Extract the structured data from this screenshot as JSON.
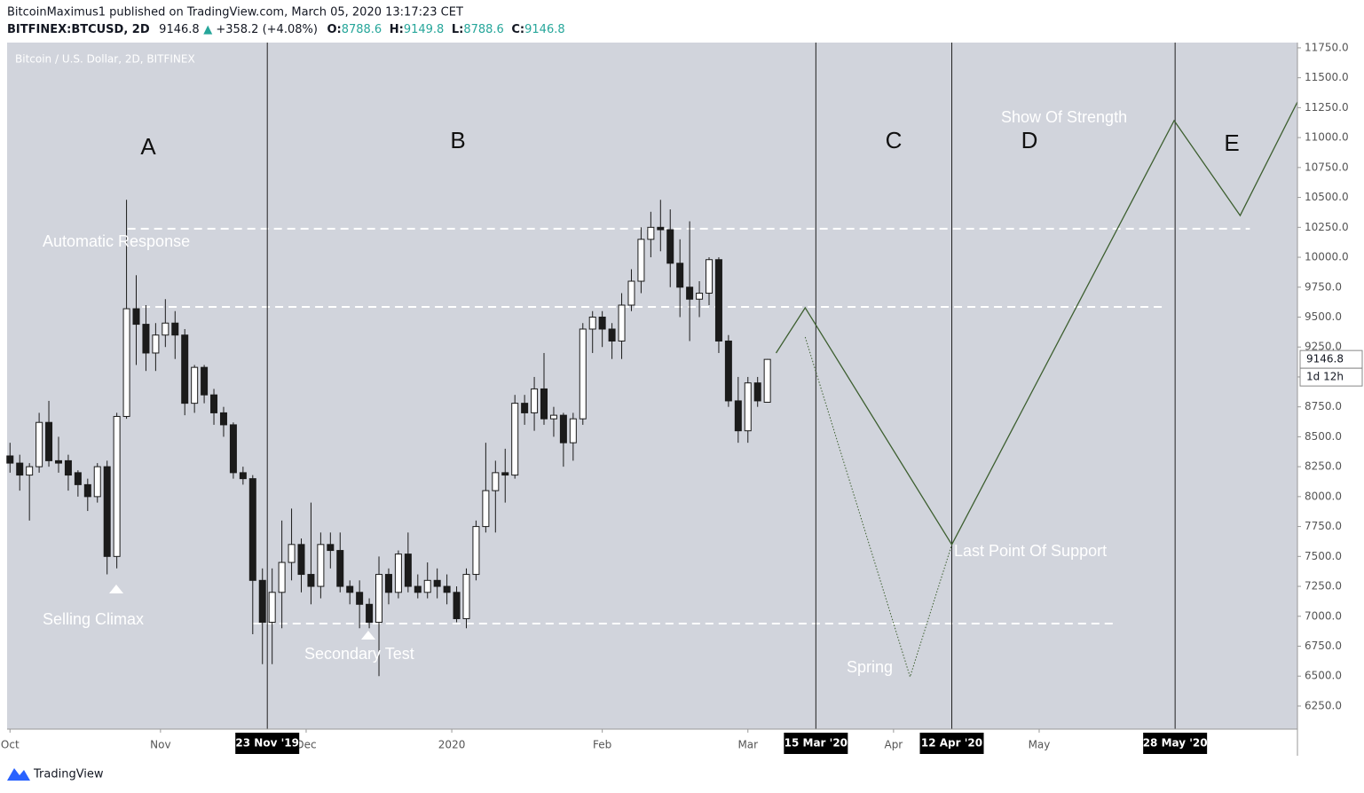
{
  "header": {
    "byline": "BitcoinMaximus1 published on TradingView.com, March 05, 2020 13:17:23 CET",
    "symbol": "BITFINEX:BTCUSD, 2D",
    "last": "9146.8",
    "change": "+358.2 (+4.08%)",
    "ohlc": [
      {
        "label": "O:",
        "value": "8788.6"
      },
      {
        "label": "H:",
        "value": "9149.8"
      },
      {
        "label": "L:",
        "value": "8788.6"
      },
      {
        "label": "C:",
        "value": "9146.8"
      }
    ]
  },
  "footer": {
    "brand": "TradingView"
  },
  "chart_data": {
    "type": "candlestick",
    "title": "Bitcoin / U.S. Dollar, 2D, BITFINEX",
    "up_color": "#ffffff",
    "down_color": "#1b1b1b",
    "open": [
      8340,
      8280,
      8180,
      8250,
      8620,
      8300,
      8300,
      8200,
      8100,
      8000,
      8250,
      7500,
      8670,
      9570,
      9440,
      9200,
      9350,
      9450,
      9350,
      8780,
      9080,
      8850,
      8700,
      8600,
      8200,
      8150,
      7300,
      6950,
      7200,
      7450,
      7600,
      7350,
      7250,
      7600,
      7550,
      7250,
      7200,
      7100,
      6950,
      7350,
      7200,
      7520,
      7250,
      7200,
      7300,
      7250,
      7200,
      6980,
      7350,
      7750,
      8050,
      8200,
      8180,
      8780,
      8700,
      8900,
      8650,
      8680,
      8450,
      8650,
      9400,
      9500,
      9400,
      9300,
      9600,
      9800,
      10150,
      10250,
      10230,
      9950,
      9750,
      9650,
      9700,
      9980,
      9300,
      8800,
      8550,
      8950,
      8788.6
    ],
    "high": [
      8450,
      8350,
      8280,
      8700,
      8800,
      8500,
      8350,
      8220,
      8150,
      8280,
      8300,
      8700,
      10480,
      9850,
      9600,
      9450,
      9650,
      9550,
      9400,
      9100,
      9100,
      8900,
      8750,
      8620,
      8250,
      8180,
      7400,
      7400,
      7800,
      7900,
      7650,
      7950,
      7700,
      7700,
      7700,
      7300,
      7300,
      7150,
      7500,
      7400,
      7550,
      7700,
      7350,
      7450,
      7400,
      7350,
      7250,
      7400,
      7800,
      8450,
      8300,
      8400,
      8850,
      8850,
      9000,
      9200,
      8750,
      8700,
      8700,
      9450,
      9550,
      9550,
      9450,
      9700,
      9900,
      10250,
      10380,
      10480,
      10400,
      10150,
      10300,
      9800,
      10000,
      10000,
      9350,
      9000,
      9000,
      9000,
      9149.8
    ],
    "low": [
      8200,
      8050,
      7800,
      8200,
      8250,
      8200,
      8050,
      8000,
      7880,
      7950,
      7350,
      7400,
      8650,
      9100,
      9050,
      9050,
      9250,
      9150,
      8680,
      8700,
      8780,
      8600,
      8500,
      8150,
      8100,
      6850,
      6600,
      6600,
      6900,
      7300,
      7200,
      7100,
      7150,
      7400,
      7200,
      7100,
      6900,
      6900,
      6500,
      7100,
      7150,
      7200,
      7150,
      7150,
      7150,
      7100,
      6950,
      6900,
      7300,
      7700,
      7700,
      7950,
      8150,
      8600,
      8550,
      8600,
      8500,
      8250,
      8300,
      8600,
      9200,
      9250,
      9150,
      9150,
      9550,
      9700,
      10000,
      10050,
      9750,
      9500,
      9300,
      9500,
      9600,
      9200,
      8750,
      8450,
      8450,
      8750,
      8788.6
    ],
    "close": [
      8280,
      8180,
      8250,
      8620,
      8300,
      8280,
      8180,
      8100,
      8000,
      8250,
      7500,
      8670,
      9570,
      9440,
      9200,
      9350,
      9450,
      9350,
      8780,
      9080,
      8850,
      8700,
      8600,
      8200,
      8150,
      7300,
      6950,
      7200,
      7450,
      7600,
      7350,
      7250,
      7600,
      7550,
      7250,
      7200,
      7100,
      6950,
      7350,
      7200,
      7520,
      7250,
      7200,
      7300,
      7250,
      7200,
      6980,
      7350,
      7750,
      8050,
      8200,
      8180,
      8780,
      8700,
      8900,
      8650,
      8680,
      8450,
      8650,
      9400,
      9500,
      9400,
      9300,
      9600,
      9800,
      10150,
      10250,
      10230,
      9950,
      9750,
      9650,
      9700,
      9980,
      9300,
      8800,
      8550,
      8950,
      8800,
      9146.8
    ],
    "xlim": [
      -0.3,
      132.6
    ],
    "xticks": [
      {
        "value": 0,
        "label": "Oct"
      },
      {
        "value": 15.5,
        "label": "Nov"
      },
      {
        "value": 30.5,
        "label": "Dec"
      },
      {
        "value": 45.5,
        "label": "2020"
      },
      {
        "value": 61,
        "label": "Feb"
      },
      {
        "value": 76,
        "label": "Mar"
      },
      {
        "value": 91,
        "label": "Apr"
      },
      {
        "value": 106,
        "label": "May"
      }
    ],
    "ylim": [
      6057,
      11794
    ],
    "yticks": [
      {
        "value": 6250,
        "label": "6250.0"
      },
      {
        "value": 6500,
        "label": "6500.0"
      },
      {
        "value": 6750,
        "label": "6750.0"
      },
      {
        "value": 7000,
        "label": "7000.0"
      },
      {
        "value": 7250,
        "label": "7250.0"
      },
      {
        "value": 7500,
        "label": "7500.0"
      },
      {
        "value": 7750,
        "label": "7750.0"
      },
      {
        "value": 8000,
        "label": "8000.0"
      },
      {
        "value": 8250,
        "label": "8250.0"
      },
      {
        "value": 8500,
        "label": "8500.0"
      },
      {
        "value": 8750,
        "label": "8750.0"
      },
      {
        "value": 9000,
        "label": "9000.0"
      },
      {
        "value": 9250,
        "label": "9250.0"
      },
      {
        "value": 9500,
        "label": "9500.0"
      },
      {
        "value": 9750,
        "label": "9750.0"
      },
      {
        "value": 10000,
        "label": "10000.0"
      },
      {
        "value": 10250,
        "label": "10250.0"
      },
      {
        "value": 10500,
        "label": "10500.0"
      },
      {
        "value": 10750,
        "label": "10750.0"
      },
      {
        "value": 11000,
        "label": "11000.0"
      },
      {
        "value": 11250,
        "label": "11250.0"
      },
      {
        "value": 11500,
        "label": "11500.0"
      },
      {
        "value": 11750,
        "label": "11750.0"
      }
    ],
    "markers": [
      {
        "value": 26.5,
        "label": "23 Nov '19"
      },
      {
        "value": 83,
        "label": "15 Mar '20"
      },
      {
        "value": 97,
        "label": "12 Apr '20"
      },
      {
        "value": 120,
        "label": "28 May '20"
      }
    ],
    "levels": [
      {
        "value": 10238,
        "from": 12.1,
        "to": 127.7
      },
      {
        "value": 9585,
        "from": 13.6,
        "to": 118.7
      },
      {
        "value": 6939,
        "from": 25.0,
        "to": 113.7
      }
    ],
    "projection": {
      "color": "#3d5f30",
      "x": [
        78.9,
        81.9,
        97,
        119.9,
        126.7,
        132.6
      ],
      "values": [
        9200,
        9578,
        7599,
        11142,
        10349,
        11298
      ]
    },
    "spring_path": {
      "color": "#3d5f30",
      "x": [
        81.9,
        92.7,
        97
      ],
      "values": [
        9333,
        6494,
        7599
      ]
    },
    "price_tag": {
      "value": 9146.8,
      "label": "9146.8"
    },
    "countdown": "1d 12h",
    "phases": [
      "A",
      "B",
      "C",
      "D",
      "E"
    ],
    "annotations": [
      "Automatic Response",
      "Selling Climax",
      "Secondary Test",
      "Spring",
      "Last Point Of Support",
      "Show Of Strength"
    ]
  }
}
